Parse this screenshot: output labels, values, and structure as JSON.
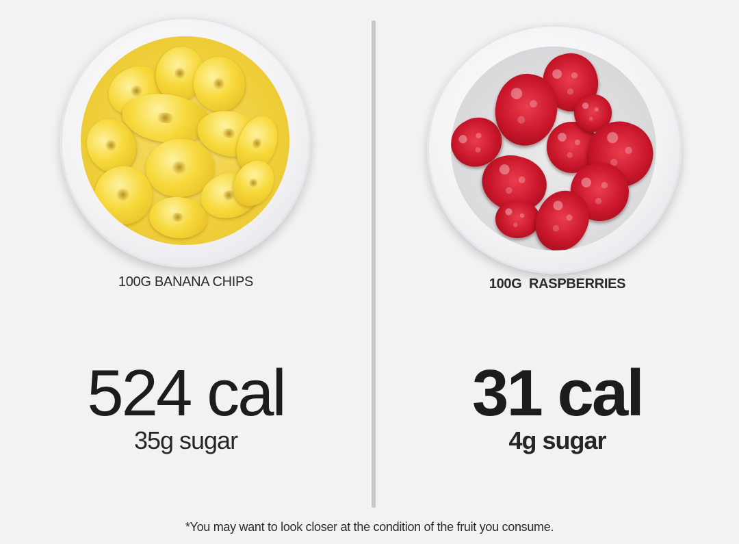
{
  "left": {
    "label": "100G BANANA CHIPS",
    "calories": "524 cal",
    "sugar": "35g sugar",
    "image_icon": "banana-chips-bowl-icon"
  },
  "right": {
    "label": "100G  RASPBERRIES",
    "calories": "31 cal",
    "sugar": "4g sugar",
    "image_icon": "raspberries-bowl-icon"
  },
  "footnote": "*You may want to look closer at the condition of the fruit you consume.",
  "colors": {
    "background": "#f2f2f2",
    "divider": "#c9c9c9",
    "text": "#1c1c1c",
    "banana": "#f0cf3a",
    "raspberry": "#c9162a"
  }
}
